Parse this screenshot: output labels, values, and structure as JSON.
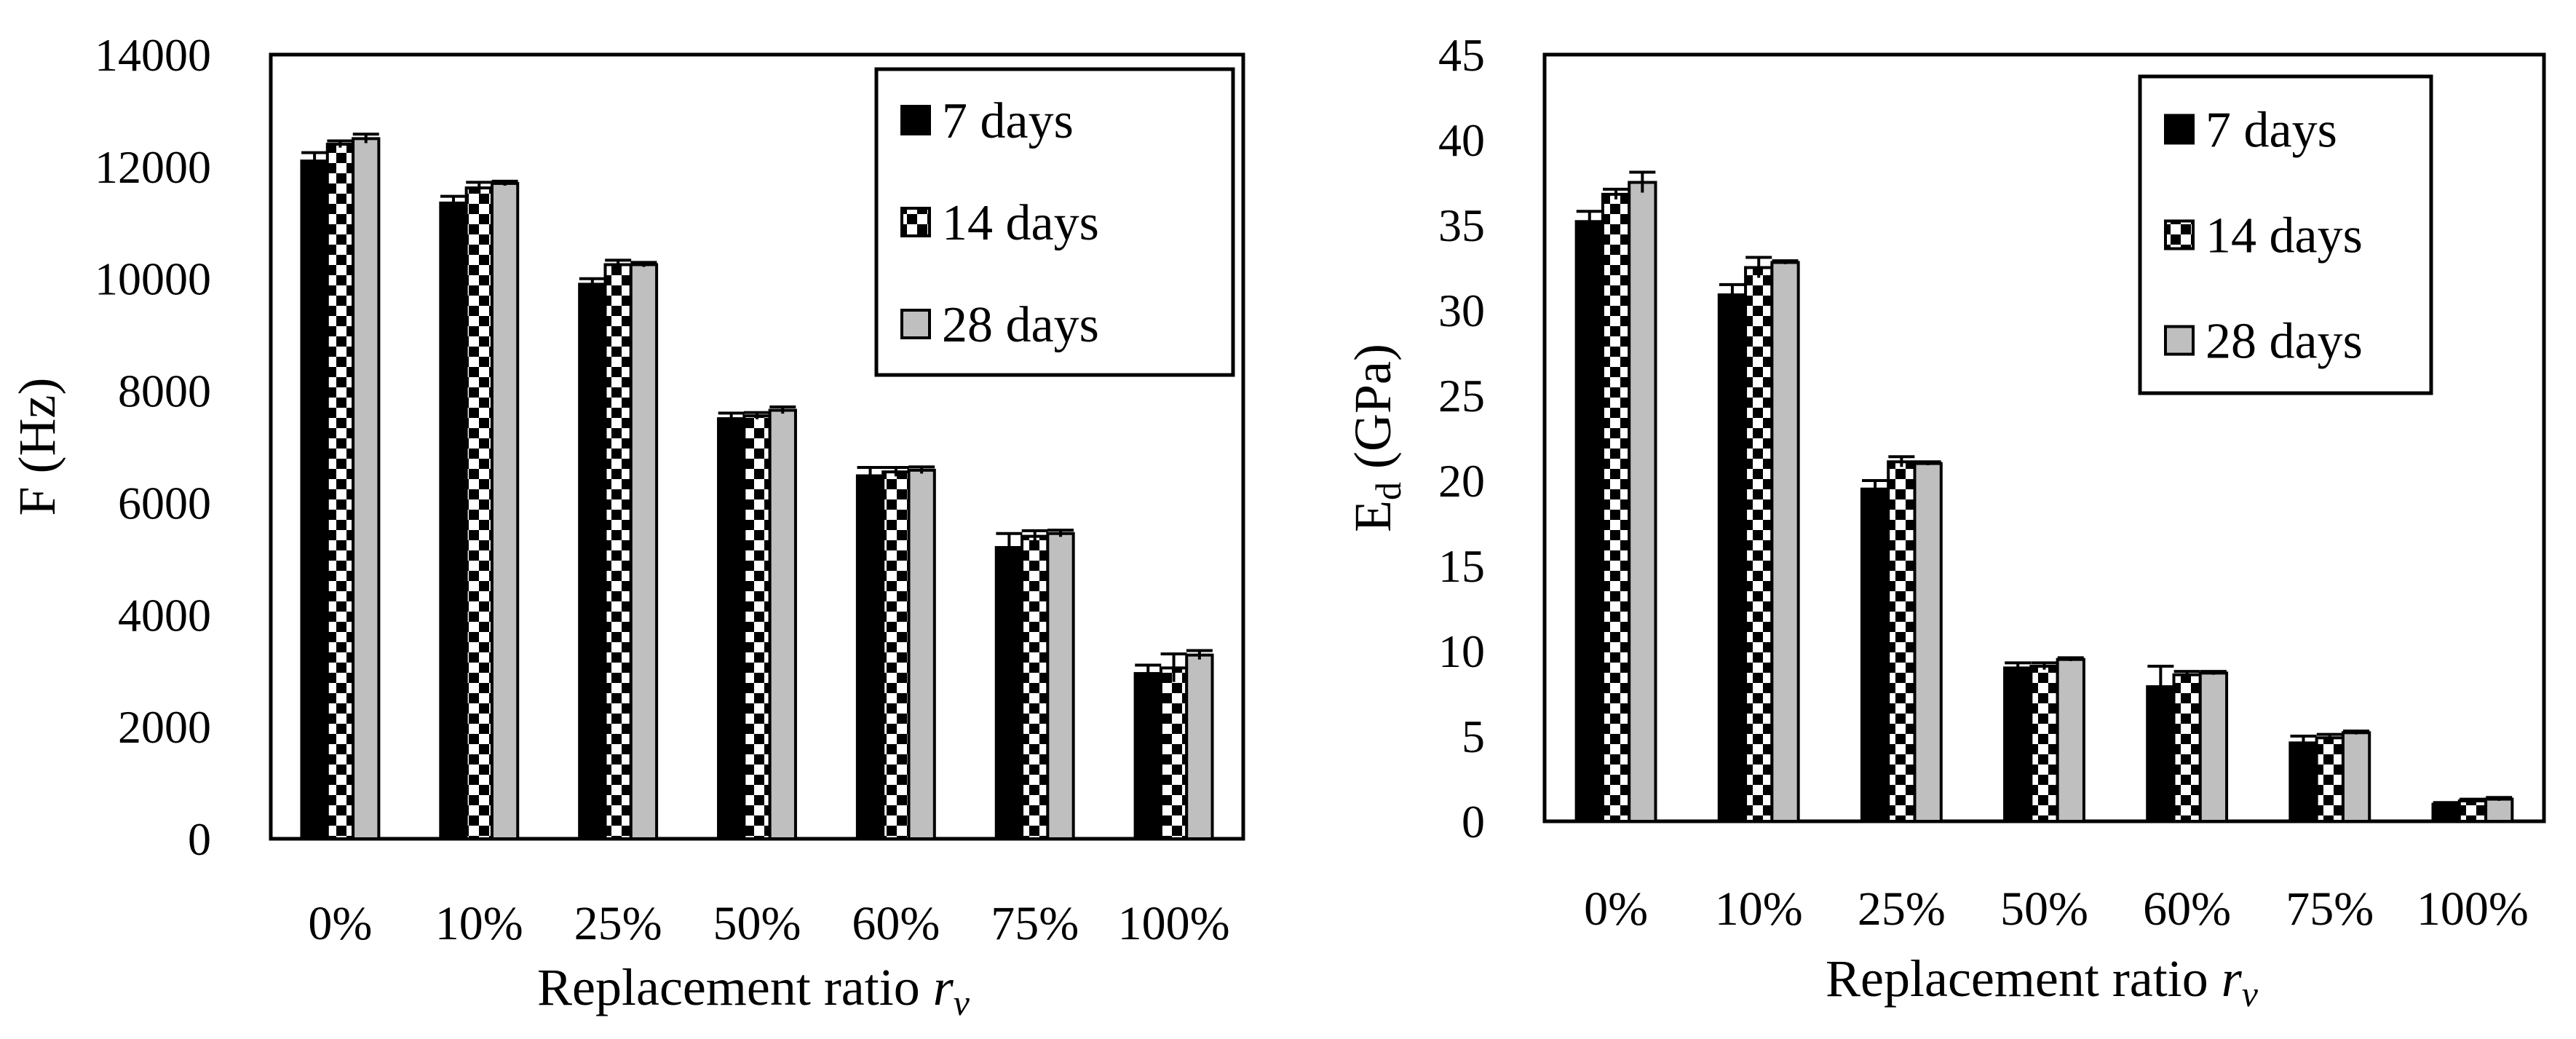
{
  "chart_data": [
    {
      "type": "bar",
      "title": "",
      "xlabel": "Replacement ratio",
      "xlabel_var": "r",
      "xlabel_sub": "v",
      "ylabel": "F (Hz)",
      "ylim": [
        0,
        14000
      ],
      "yticks": [
        0,
        2000,
        4000,
        6000,
        8000,
        10000,
        12000,
        14000
      ],
      "categories": [
        "0%",
        "10%",
        "25%",
        "50%",
        "60%",
        "75%",
        "100%"
      ],
      "legend_position": "top-right",
      "series": [
        {
          "name": "7 days",
          "pattern": "solid",
          "values": [
            12100,
            11350,
            9900,
            7500,
            6480,
            5200,
            2950
          ],
          "errors": [
            150,
            120,
            100,
            100,
            150,
            250,
            150
          ]
        },
        {
          "name": "14 days",
          "pattern": "checker",
          "values": [
            12400,
            11620,
            10250,
            7550,
            6550,
            5400,
            3050
          ],
          "errors": [
            60,
            100,
            80,
            60,
            80,
            100,
            250
          ]
        },
        {
          "name": "28 days",
          "pattern": "gray",
          "values": [
            12500,
            11700,
            10250,
            7650,
            6580,
            5450,
            3280
          ],
          "errors": [
            80,
            40,
            40,
            60,
            60,
            60,
            80
          ]
        }
      ]
    },
    {
      "type": "bar",
      "title": "",
      "xlabel": "Replacement ratio",
      "xlabel_var": "r",
      "xlabel_sub": "v",
      "ylabel": "E",
      "ylabel_sub": "d",
      "ylabel_unit": " (GPa)",
      "ylim": [
        0,
        45
      ],
      "yticks": [
        0,
        5,
        10,
        15,
        20,
        25,
        30,
        35,
        40,
        45
      ],
      "categories": [
        "0%",
        "10%",
        "25%",
        "50%",
        "60%",
        "75%",
        "100%"
      ],
      "legend_position": "top-right",
      "series": [
        {
          "name": "7 days",
          "pattern": "solid",
          "values": [
            35.2,
            30.9,
            19.5,
            9.0,
            7.9,
            4.6,
            1.0
          ],
          "errors": [
            0.6,
            0.6,
            0.5,
            0.3,
            1.2,
            0.4,
            0.1
          ]
        },
        {
          "name": "14 days",
          "pattern": "checker",
          "values": [
            36.8,
            32.5,
            21.1,
            9.1,
            8.6,
            4.9,
            1.2
          ],
          "errors": [
            0.3,
            0.6,
            0.3,
            0.2,
            0.2,
            0.2,
            0.1
          ]
        },
        {
          "name": "28 days",
          "pattern": "gray",
          "values": [
            37.5,
            32.8,
            21.0,
            9.5,
            8.7,
            5.2,
            1.3
          ],
          "errors": [
            0.6,
            0.1,
            0.1,
            0.1,
            0.1,
            0.1,
            0.1
          ]
        }
      ]
    }
  ]
}
